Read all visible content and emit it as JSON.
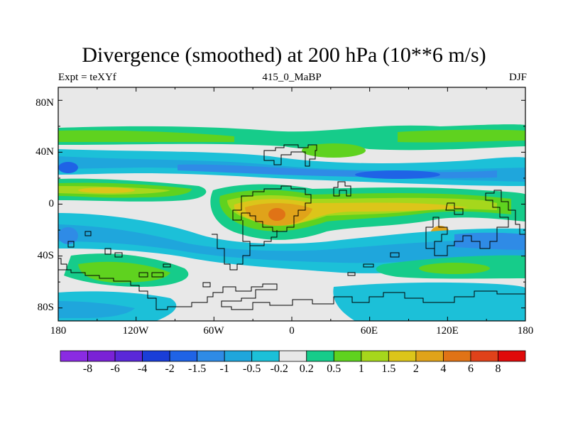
{
  "title": "Divergence (smoothed) at 200 hPa (10**6 m/s)",
  "left_subtitle": "Expt = teXYf",
  "center_subtitle": "415_0_MaBP",
  "right_subtitle": "DJF",
  "lat_labels": [
    "80N",
    "40N",
    "0",
    "40S",
    "80S"
  ],
  "lon_labels": [
    "180",
    "120W",
    "60W",
    "0",
    "60E",
    "120E",
    "180"
  ],
  "colorbar": {
    "labels": [
      "-8",
      "-6",
      "-4",
      "-2",
      "-1.5",
      "-1",
      "-0.5",
      "-0.2",
      "0.2",
      "0.5",
      "1",
      "1.5",
      "2",
      "4",
      "6",
      "8"
    ],
    "colors": [
      "#8a2be2",
      "#7a22d6",
      "#5a28d8",
      "#1a3ed8",
      "#1f63e6",
      "#2f8be6",
      "#1fa6dc",
      "#1cc0d8",
      "#e8e8e8",
      "#16cc8a",
      "#5fd21f",
      "#a6d71c",
      "#dcc51a",
      "#e0a31a",
      "#e07316",
      "#e0421a",
      "#e00a0a"
    ]
  },
  "chart_data": {
    "type": "heatmap",
    "title": "Divergence (smoothed) at 200 hPa (10**6 m/s)",
    "variable": "Divergence (smoothed)",
    "level": "200 hPa",
    "units": "10**6 m/s",
    "experiment": "teXYf",
    "dataset": "415_0_MaBP",
    "season": "DJF",
    "x_axis": {
      "ticks": [
        "180",
        "120W",
        "60W",
        "0",
        "60E",
        "120E",
        "180"
      ],
      "range": [
        -180,
        180
      ]
    },
    "y_axis": {
      "ticks": [
        "80N",
        "40N",
        "0",
        "40S",
        "80S"
      ],
      "range": [
        -90,
        90
      ]
    },
    "contour_levels": [
      -8,
      -6,
      -4,
      -2,
      -1.5,
      -1,
      -0.5,
      -0.2,
      0.2,
      0.5,
      1,
      1.5,
      2,
      4,
      6,
      8
    ],
    "features": [
      {
        "region": "20N-50N band",
        "value_range": [
          -2,
          -1
        ],
        "description": "convergence band across most longitudes"
      },
      {
        "region": "0-15N, 180-100W",
        "value_range": [
          1,
          2
        ],
        "description": "divergence band"
      },
      {
        "region": "0-20S, 60W-10E",
        "value_range": [
          2,
          6
        ],
        "description": "strong divergence maximum"
      },
      {
        "region": "0-20S, 40E-160E",
        "value_range": [
          1.5,
          4
        ],
        "description": "divergence band"
      },
      {
        "region": "50N-60N band",
        "value_range": [
          0.5,
          1
        ],
        "description": "weak divergence"
      },
      {
        "region": "80S",
        "value_range": [
          -1,
          -0.2
        ],
        "description": "weak convergence near the south pole"
      }
    ]
  }
}
